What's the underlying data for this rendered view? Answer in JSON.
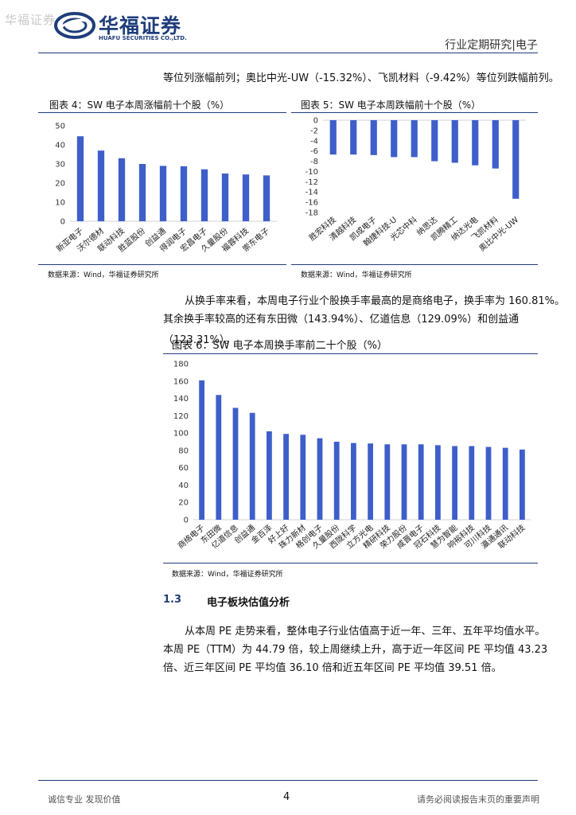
{
  "header": {
    "watermark": "华福证券",
    "brand_cn": "华福证券",
    "brand_en": "HUAFU SECURITIES CO.,LTD.",
    "report_type": "行业定期研究|电子"
  },
  "intro_line": "等位列涨幅前列；奥比中光-UW（-15.32%）、飞凯材料（-9.42%）等位列跌幅前列。",
  "fig4": {
    "title": "图表 4：SW 电子本周涨幅前十个股（%）",
    "source": "数据来源：Wind，华福证券研究所",
    "chart_data": {
      "type": "bar",
      "categories": [
        "新亚电子",
        "沃尔德材",
        "联动科技",
        "胜蓝股份",
        "创益通",
        "得润电子",
        "宏昌电子",
        "久量股份",
        "福蓉科技",
        "崇东电子"
      ],
      "values": [
        44.5,
        37,
        33,
        30,
        29,
        28.8,
        27.2,
        25,
        24.5,
        24
      ],
      "ylim": [
        0,
        50
      ],
      "yticks": [
        "0",
        "10",
        "20",
        "30",
        "40",
        "50"
      ]
    }
  },
  "fig5": {
    "title": "图表 5：SW 电子本周跌幅前十个股（%）",
    "source": "数据来源：Wind，华福证券研究所",
    "chart_data": {
      "type": "bar",
      "categories": [
        "胜宏科技",
        "清越科技",
        "凯成电子",
        "翰捷科技-U",
        "光芯中科",
        "纳思达",
        "凯腾精工",
        "纳达光电",
        "飞凯材料",
        "奥比中光-UW"
      ],
      "values": [
        -6.7,
        -6.7,
        -6.8,
        -7.2,
        -7.2,
        -8.0,
        -8.3,
        -8.8,
        -9.42,
        -15.32
      ],
      "ylim": [
        -18,
        0
      ],
      "yticks": [
        "0",
        "-2",
        "-4",
        "-6",
        "-8",
        "-10",
        "-12",
        "-14",
        "-16",
        "-18"
      ]
    }
  },
  "para2": [
    "从换手率来看，本周电子行业个股换手率最高的是商络电子，换手率为 160.81%。",
    "其余换手率较高的还有东田微（143.94%）、亿道信息（129.09%）和创益通（123.31%）。"
  ],
  "fig6": {
    "title": "图表 6：SW 电子本周换手率前二十个股（%）",
    "source": "数据来源：Wind，华福证券研究所",
    "chart_data": {
      "type": "bar",
      "categories": [
        "商络电子",
        "东田微",
        "亿道信息",
        "创益通",
        "金百泽",
        "好上好",
        "珠力新材",
        "格创电子",
        "久量股份",
        "西陇科学",
        "立方光电",
        "精研科技",
        "荣力股份",
        "咸晋电子",
        "冠石科技",
        "慧为智能",
        "响裕科技",
        "可川科技",
        "瀛通通讯",
        "联动科技"
      ],
      "values": [
        160.81,
        143.94,
        129.09,
        123.31,
        102,
        99,
        98,
        94,
        90,
        88.5,
        88,
        87,
        87,
        87,
        86,
        85,
        85,
        84,
        83,
        81
      ],
      "ylim": [
        0,
        180
      ],
      "yticks": [
        "0",
        "20",
        "40",
        "60",
        "80",
        "100",
        "120",
        "140",
        "160",
        "180"
      ]
    }
  },
  "section": {
    "number": "1.3",
    "title": "电子板块估值分析",
    "lines": [
      "从本周 PE 走势来看，整体电子行业估值高于近一年、三年、五年平均值水平。",
      "本周 PE（TTM）为 44.79 倍，较上周继续上升，高于近一年区间 PE 平均值 43.23",
      "倍、近三年区间 PE 平均值 36.10 倍和近五年区间 PE 平均值 39.51 倍。"
    ]
  },
  "footer": {
    "left": "诚信专业  发现价值",
    "page": "4",
    "right": "请务必阅读报告末页的重要声明"
  },
  "colors": {
    "bar": "#3e5fc9",
    "navy": "#1f3d7a",
    "axis": "#d0d0d0"
  }
}
